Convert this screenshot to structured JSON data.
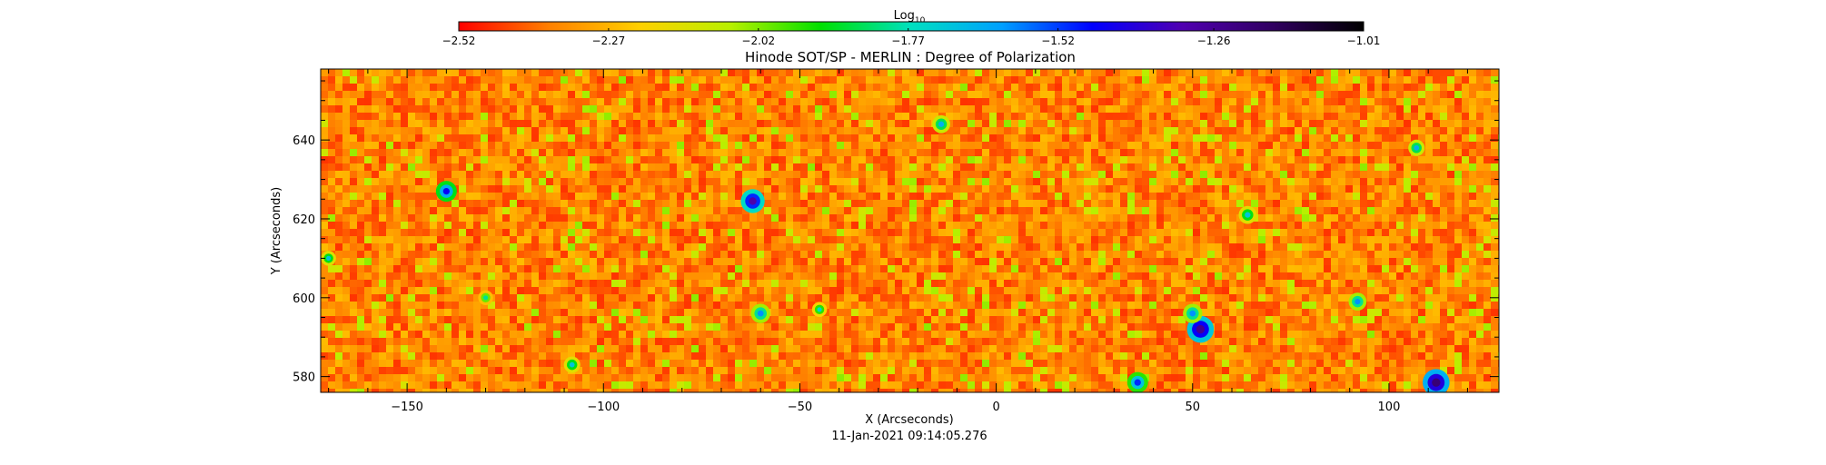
{
  "chart_data": {
    "type": "heatmap",
    "title": "Hinode SOT/SP - MERLIN : Degree of Polarization",
    "xlabel": "X (Arcseconds)",
    "ylabel": "Y (Arcseconds)",
    "timestamp": "11-Jan-2021 09:14:05.276",
    "xlim": [
      -172,
      128
    ],
    "ylim": [
      576,
      658
    ],
    "x_ticks": [
      -150,
      -100,
      -50,
      0,
      50,
      100
    ],
    "x_tick_labels": [
      "−150",
      "−100",
      "−50",
      "0",
      "50",
      "100"
    ],
    "y_ticks": [
      580,
      600,
      620,
      640
    ],
    "y_tick_labels": [
      "580",
      "600",
      "620",
      "640"
    ],
    "colorbar": {
      "label_base": "Log",
      "label_sub": "10",
      "range": [
        -2.52,
        -1.01
      ],
      "tick_values": [
        -2.52,
        -2.27,
        -2.02,
        -1.77,
        -1.52,
        -1.26,
        -1.01
      ],
      "tick_labels": [
        "−2.52",
        "−2.27",
        "−2.02",
        "−1.77",
        "−1.52",
        "−1.26",
        "−1.01"
      ],
      "colors": [
        "#ff0000",
        "#ff8000",
        "#ffd000",
        "#b8f000",
        "#00e000",
        "#00e0c0",
        "#00a0ff",
        "#0000ff",
        "#5000b0",
        "#300060",
        "#000000"
      ]
    },
    "background_level": -2.35,
    "features": [
      {
        "x": -62,
        "y": 624.5,
        "r": 1.6,
        "level": -1.3
      },
      {
        "x": -140,
        "y": 627,
        "r": 1.4,
        "level": -1.45
      },
      {
        "x": 52,
        "y": 592,
        "r": 1.8,
        "level": -1.25
      },
      {
        "x": 50,
        "y": 596,
        "r": 1.3,
        "level": -1.6
      },
      {
        "x": 112,
        "y": 578.5,
        "r": 1.8,
        "level": -1.2
      },
      {
        "x": 36,
        "y": 578.5,
        "r": 1.4,
        "level": -1.5
      },
      {
        "x": -60,
        "y": 596,
        "r": 1.3,
        "level": -1.6
      },
      {
        "x": 92,
        "y": 599,
        "r": 1.2,
        "level": -1.6
      },
      {
        "x": 64,
        "y": 621,
        "r": 1.2,
        "level": -1.7
      },
      {
        "x": -14,
        "y": 644,
        "r": 1.2,
        "level": -1.65
      },
      {
        "x": 107,
        "y": 638,
        "r": 1.1,
        "level": -1.65
      },
      {
        "x": -108,
        "y": 583,
        "r": 1.1,
        "level": -1.7
      },
      {
        "x": -45,
        "y": 597,
        "r": 1.0,
        "level": -1.75
      },
      {
        "x": -170,
        "y": 610,
        "r": 1.0,
        "level": -1.7
      },
      {
        "x": -130,
        "y": 600,
        "r": 1.0,
        "level": -1.8
      }
    ]
  }
}
